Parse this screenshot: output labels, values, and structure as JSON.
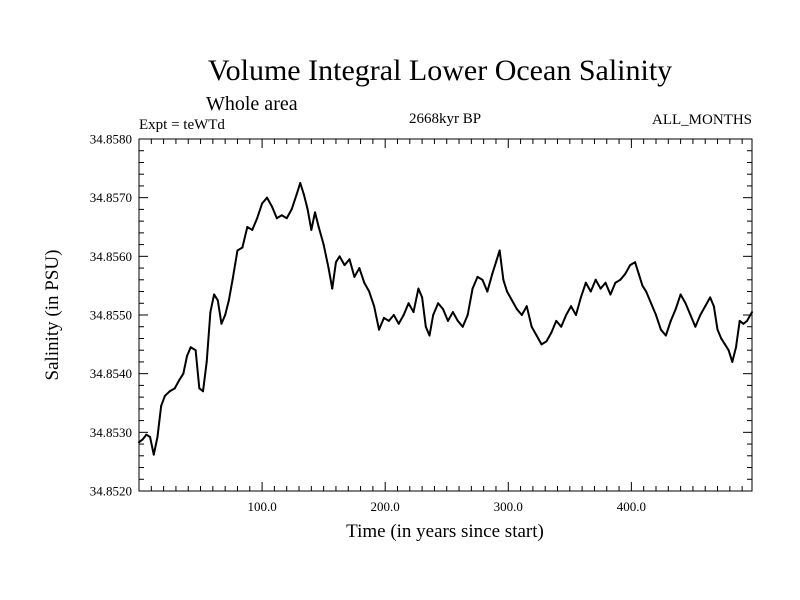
{
  "chart_data": {
    "type": "line",
    "title": "Volume Integral Lower Ocean Salinity",
    "subtitle": "Whole area",
    "header_left": "Expt = teWTd",
    "header_center": "2668kyr BP",
    "header_right": "ALL_MONTHS",
    "xlabel": "Time (in years since start)",
    "ylabel": "Salinity (in PSU)",
    "xlim": [
      0,
      498
    ],
    "ylim": [
      34.852,
      34.858
    ],
    "x_ticks": [
      100,
      200,
      300,
      400
    ],
    "x_tick_labels": [
      "100.0",
      "200.0",
      "300.0",
      "400.0"
    ],
    "y_ticks": [
      34.852,
      34.853,
      34.854,
      34.855,
      34.856,
      34.857,
      34.858
    ],
    "y_tick_labels": [
      "34.8520",
      "34.8530",
      "34.8540",
      "34.8550",
      "34.8560",
      "34.8570",
      "34.8580"
    ],
    "series": [
      {
        "name": "Salinity",
        "points": [
          [
            0,
            34.85283
          ],
          [
            3,
            34.85288
          ],
          [
            6,
            34.85296
          ],
          [
            9,
            34.85292
          ],
          [
            12,
            34.85262
          ],
          [
            15,
            34.85292
          ],
          [
            18,
            34.85345
          ],
          [
            21,
            34.85362
          ],
          [
            25,
            34.8537
          ],
          [
            29,
            34.85375
          ],
          [
            33,
            34.8539
          ],
          [
            36,
            34.854
          ],
          [
            39,
            34.8543
          ],
          [
            42,
            34.85445
          ],
          [
            46,
            34.8544
          ],
          [
            49,
            34.85375
          ],
          [
            52,
            34.8537
          ],
          [
            55,
            34.8542
          ],
          [
            58,
            34.85505
          ],
          [
            61,
            34.85535
          ],
          [
            64,
            34.85525
          ],
          [
            67,
            34.85485
          ],
          [
            70,
            34.855
          ],
          [
            73,
            34.85525
          ],
          [
            76,
            34.8556
          ],
          [
            80,
            34.8561
          ],
          [
            84,
            34.85615
          ],
          [
            88,
            34.8565
          ],
          [
            92,
            34.85645
          ],
          [
            96,
            34.85665
          ],
          [
            100,
            34.8569
          ],
          [
            104,
            34.857
          ],
          [
            108,
            34.85685
          ],
          [
            112,
            34.85665
          ],
          [
            116,
            34.8567
          ],
          [
            120,
            34.85665
          ],
          [
            124,
            34.8568
          ],
          [
            128,
            34.85705
          ],
          [
            131,
            34.85725
          ],
          [
            134,
            34.85705
          ],
          [
            137,
            34.8568
          ],
          [
            140,
            34.85645
          ],
          [
            143,
            34.85675
          ],
          [
            146,
            34.8565
          ],
          [
            150,
            34.8562
          ],
          [
            154,
            34.8558
          ],
          [
            157,
            34.85545
          ],
          [
            160,
            34.8559
          ],
          [
            163,
            34.856
          ],
          [
            167,
            34.85585
          ],
          [
            171,
            34.85595
          ],
          [
            175,
            34.85565
          ],
          [
            179,
            34.8558
          ],
          [
            183,
            34.85555
          ],
          [
            187,
            34.8554
          ],
          [
            191,
            34.85515
          ],
          [
            195,
            34.85475
          ],
          [
            199,
            34.85495
          ],
          [
            203,
            34.8549
          ],
          [
            207,
            34.855
          ],
          [
            211,
            34.85485
          ],
          [
            215,
            34.855
          ],
          [
            219,
            34.8552
          ],
          [
            223,
            34.85505
          ],
          [
            227,
            34.85545
          ],
          [
            230,
            34.8553
          ],
          [
            233,
            34.8548
          ],
          [
            236,
            34.85465
          ],
          [
            239,
            34.855
          ],
          [
            243,
            34.8552
          ],
          [
            247,
            34.8551
          ],
          [
            251,
            34.8549
          ],
          [
            255,
            34.85505
          ],
          [
            259,
            34.8549
          ],
          [
            263,
            34.8548
          ],
          [
            267,
            34.855
          ],
          [
            271,
            34.85545
          ],
          [
            275,
            34.85565
          ],
          [
            279,
            34.8556
          ],
          [
            283,
            34.8554
          ],
          [
            287,
            34.8557
          ],
          [
            290,
            34.8559
          ],
          [
            293,
            34.8561
          ],
          [
            296,
            34.8556
          ],
          [
            299,
            34.8554
          ],
          [
            303,
            34.85525
          ],
          [
            307,
            34.8551
          ],
          [
            311,
            34.855
          ],
          [
            315,
            34.85515
          ],
          [
            319,
            34.8548
          ],
          [
            323,
            34.85465
          ],
          [
            327,
            34.8545
          ],
          [
            331,
            34.85455
          ],
          [
            335,
            34.8547
          ],
          [
            339,
            34.8549
          ],
          [
            343,
            34.8548
          ],
          [
            347,
            34.855
          ],
          [
            351,
            34.85515
          ],
          [
            355,
            34.855
          ],
          [
            359,
            34.8553
          ],
          [
            363,
            34.85555
          ],
          [
            367,
            34.8554
          ],
          [
            371,
            34.8556
          ],
          [
            375,
            34.85545
          ],
          [
            379,
            34.85555
          ],
          [
            383,
            34.85535
          ],
          [
            387,
            34.85555
          ],
          [
            391,
            34.8556
          ],
          [
            395,
            34.8557
          ],
          [
            399,
            34.85585
          ],
          [
            403,
            34.8559
          ],
          [
            406,
            34.8557
          ],
          [
            409,
            34.8555
          ],
          [
            412,
            34.8554
          ],
          [
            416,
            34.8552
          ],
          [
            420,
            34.855
          ],
          [
            424,
            34.85475
          ],
          [
            428,
            34.85465
          ],
          [
            432,
            34.8549
          ],
          [
            436,
            34.8551
          ],
          [
            440,
            34.85535
          ],
          [
            444,
            34.8552
          ],
          [
            448,
            34.855
          ],
          [
            452,
            34.8548
          ],
          [
            456,
            34.855
          ],
          [
            460,
            34.85515
          ],
          [
            464,
            34.8553
          ],
          [
            467,
            34.85515
          ],
          [
            470,
            34.85475
          ],
          [
            473,
            34.8546
          ],
          [
            476,
            34.8545
          ],
          [
            479,
            34.8544
          ],
          [
            482,
            34.8542
          ],
          [
            485,
            34.85445
          ],
          [
            488,
            34.8549
          ],
          [
            491,
            34.85485
          ],
          [
            494,
            34.8549
          ],
          [
            498,
            34.85505
          ]
        ]
      }
    ]
  }
}
